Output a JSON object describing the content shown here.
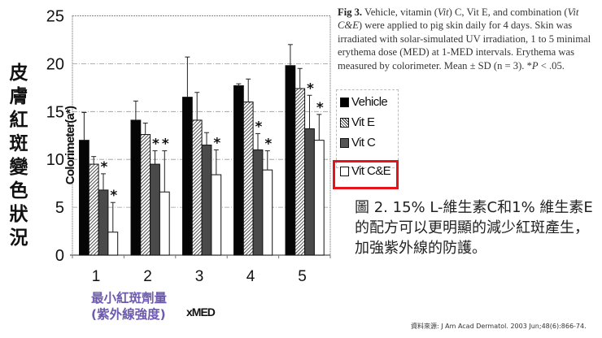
{
  "chart_data": {
    "type": "bar",
    "title": "Fig 3",
    "categories": [
      "1",
      "2",
      "3",
      "4",
      "5"
    ],
    "xlabel": "xMED",
    "ylabel": "Colorimeter(a*)",
    "ylim": [
      0,
      25
    ],
    "yticks": [
      0,
      5,
      10,
      15,
      20,
      25
    ],
    "grid": true,
    "legend_position": "right",
    "series": [
      {
        "name": "Vehicle",
        "fill": "solid-black",
        "values": [
          12.0,
          14.1,
          16.5,
          17.7,
          19.8
        ],
        "sd_upper": [
          14.9,
          16.1,
          20.7,
          17.9,
          22.0
        ],
        "significant": [
          false,
          false,
          false,
          false,
          false
        ]
      },
      {
        "name": "Vit E",
        "fill": "hatched",
        "values": [
          9.5,
          12.6,
          14.1,
          16.0,
          17.4
        ],
        "sd_upper": [
          10.3,
          13.8,
          17.0,
          18.4,
          19.5
        ],
        "significant": [
          false,
          false,
          false,
          false,
          false
        ]
      },
      {
        "name": "Vit C",
        "fill": "dark-gray",
        "values": [
          6.8,
          9.5,
          11.5,
          11.0,
          13.2
        ],
        "sd_upper": [
          8.5,
          10.9,
          12.8,
          12.7,
          16.7
        ],
        "significant": [
          true,
          true,
          false,
          true,
          true
        ]
      },
      {
        "name": "Vit C&E",
        "fill": "white",
        "values": [
          2.4,
          6.6,
          8.4,
          8.9,
          12.0
        ],
        "sd_upper": [
          5.5,
          10.9,
          11.0,
          10.9,
          14.7
        ],
        "significant": [
          true,
          true,
          true,
          true,
          true
        ]
      }
    ],
    "annotations": [
      "* P < .05"
    ]
  },
  "figure": {
    "caption_bold": "Fig 3.",
    "caption_parts": [
      " Vehicle, vitamin (",
      "Vit",
      ") C, Vit E, and combination (",
      "Vit C&E",
      ") were applied to pig skin daily for 4 days. Skin was irradiated with solar-simulated UV irradiation, 1 to 5 minimal erythema dose (MED) at 1-MED intervals. Erythema was measured by colorimeter. Mean ± SD (n = 3). *",
      "P",
      " < .05."
    ],
    "y_axis_label_en": "Colorimeter(a*)",
    "x_axis_label_en": "xMED",
    "legend": [
      "Vehicle",
      "Vit E",
      "Vit C",
      "Vit C&E"
    ],
    "highlighted_legend_item": "Vit C&E",
    "highlight_color": "#e5141b"
  },
  "annotation_zh": {
    "y_label": [
      "皮",
      "膚",
      "紅",
      "斑",
      "變",
      "色",
      "狀",
      "況"
    ],
    "x_label_line1": "最小紅斑劑量",
    "x_label_line2": "(紫外線強度)",
    "x_label_color": "#6e5bb0",
    "caption": "圖 2. 15% L-維生素C和1% 維生素E的配方可以更明顯的減少紅斑產生，加強紫外線的防護。",
    "source": "資料來源: J Am Acad Dermatol. 2003 Jun;48(6):866-74."
  }
}
